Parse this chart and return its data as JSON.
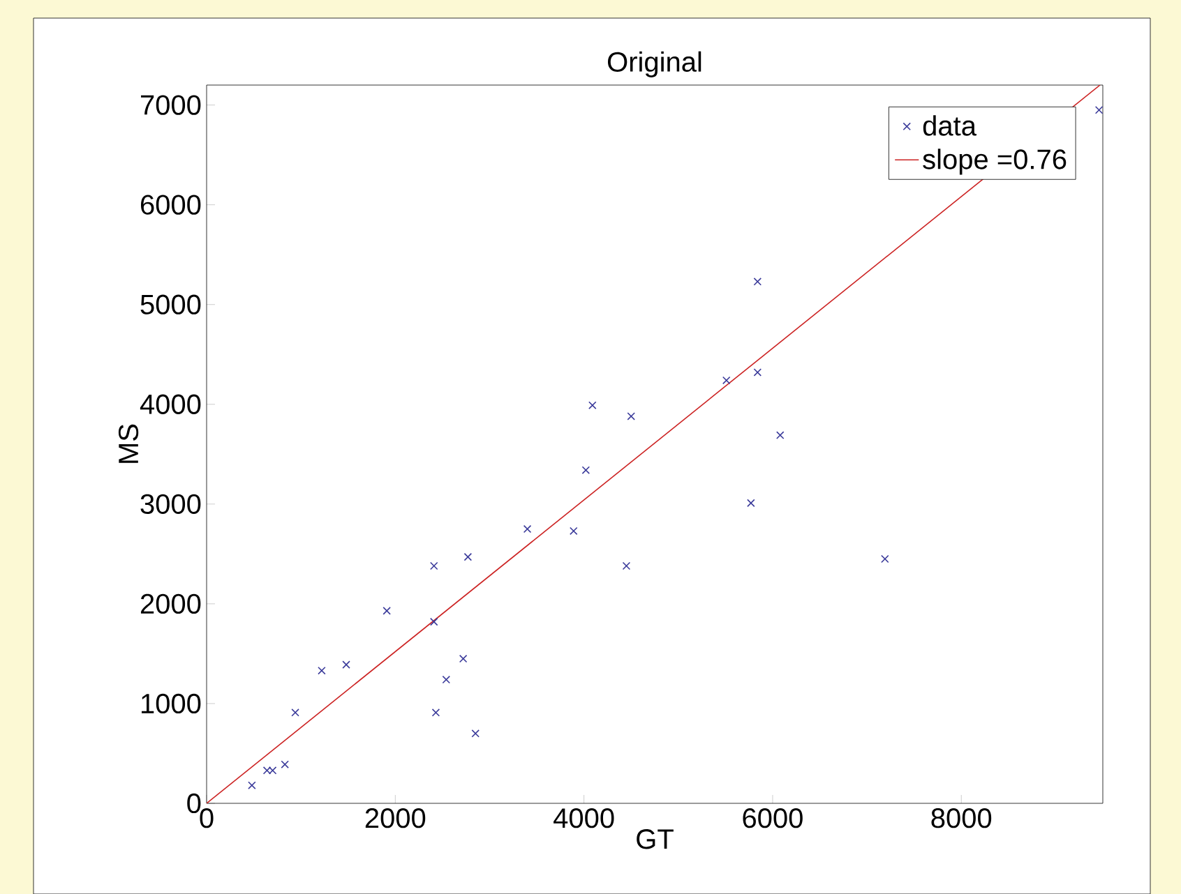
{
  "chart_data": {
    "type": "scatter",
    "title": "Original",
    "xlabel": "GT",
    "ylabel": "MS",
    "xlim": [
      0,
      9500
    ],
    "ylim": [
      0,
      7200
    ],
    "xticks": [
      0,
      2000,
      4000,
      6000,
      8000
    ],
    "yticks": [
      0,
      1000,
      2000,
      3000,
      4000,
      5000,
      6000,
      7000
    ],
    "legend": "top right",
    "grid": false,
    "marker": "cross",
    "series": [
      {
        "name": "data",
        "color": "#3a3a9a",
        "x": [
          480,
          640,
          700,
          830,
          940,
          1220,
          1480,
          1910,
          2410,
          2410,
          2430,
          2540,
          2720,
          2770,
          2850,
          3400,
          3890,
          4020,
          4090,
          4450,
          4500,
          5510,
          5770,
          5840,
          5840,
          6080,
          7190,
          9460
        ],
        "values": [
          180,
          330,
          330,
          390,
          910,
          1330,
          1390,
          1930,
          2380,
          1820,
          910,
          1240,
          1450,
          2470,
          700,
          2750,
          2730,
          3340,
          3990,
          2380,
          3880,
          4240,
          3010,
          4320,
          5230,
          3690,
          2450,
          6950
        ]
      },
      {
        "name": "slope =0.76",
        "type": "line",
        "color": "#cc2222",
        "marker": "none",
        "line_style": "solid",
        "x": [
          0,
          9470
        ],
        "values": [
          0,
          7200
        ]
      }
    ]
  }
}
